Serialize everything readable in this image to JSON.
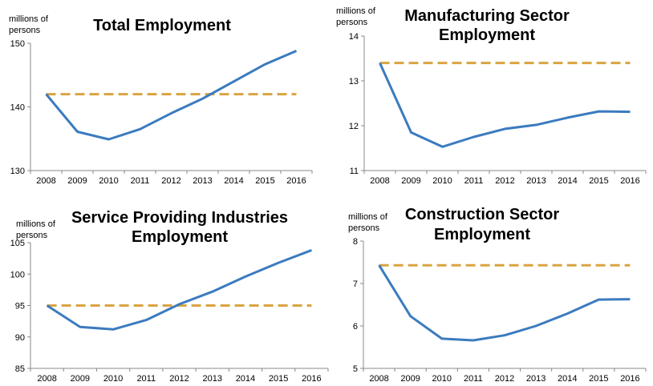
{
  "chart_data": [
    {
      "type": "line",
      "title": [
        "Total Employment"
      ],
      "unit_label": [
        "millions of",
        "persons"
      ],
      "x": [
        "2008",
        "2009",
        "2010",
        "2011",
        "2012",
        "2013",
        "2014",
        "2015",
        "2016"
      ],
      "ylim": [
        130,
        150
      ],
      "yticks": [
        130,
        140,
        150
      ],
      "series": [
        {
          "values": [
            142.0,
            136.1,
            134.9,
            136.5,
            139.0,
            141.3,
            144.0,
            146.7,
            148.8
          ],
          "color": "#3b7bbf",
          "style": "solid"
        },
        {
          "values": [
            142.0,
            142.0,
            142.0,
            142.0,
            142.0,
            142.0,
            142.0,
            142.0,
            142.0
          ],
          "color": "#d9a441",
          "style": "dashed"
        }
      ],
      "grid": false
    },
    {
      "type": "line",
      "title": [
        "Manufacturing Sector",
        "Employment"
      ],
      "unit_label": [
        "millions of",
        "persons"
      ],
      "x": [
        "2008",
        "2009",
        "2010",
        "2011",
        "2012",
        "2013",
        "2014",
        "2015",
        "2016"
      ],
      "ylim": [
        11,
        14
      ],
      "yticks": [
        11,
        12,
        13,
        14
      ],
      "series": [
        {
          "values": [
            13.4,
            11.85,
            11.53,
            11.75,
            11.93,
            12.02,
            12.18,
            12.32,
            12.31
          ],
          "color": "#3b7bbf",
          "style": "solid"
        },
        {
          "values": [
            13.4,
            13.4,
            13.4,
            13.4,
            13.4,
            13.4,
            13.4,
            13.4,
            13.4
          ],
          "color": "#d9a441",
          "style": "dashed"
        }
      ],
      "grid": false
    },
    {
      "type": "line",
      "title": [
        "Service Providing Industries",
        "Employment"
      ],
      "unit_label": [
        "millions of",
        "persons"
      ],
      "x": [
        "2008",
        "2009",
        "2010",
        "2011",
        "2012",
        "2013",
        "2014",
        "2015",
        "2016"
      ],
      "ylim": [
        85,
        105
      ],
      "yticks": [
        85,
        90,
        95,
        100,
        105
      ],
      "series": [
        {
          "values": [
            95.0,
            91.6,
            91.2,
            92.7,
            95.2,
            97.2,
            99.6,
            101.8,
            103.8
          ],
          "color": "#3b7bbf",
          "style": "solid"
        },
        {
          "values": [
            95.0,
            95.0,
            95.0,
            95.0,
            95.0,
            95.0,
            95.0,
            95.0,
            95.0
          ],
          "color": "#d9a441",
          "style": "dashed"
        }
      ],
      "grid": false
    },
    {
      "type": "line",
      "title": [
        "Construction Sector",
        "Employment"
      ],
      "unit_label": [
        "millions of",
        "persons"
      ],
      "x": [
        "2008",
        "2009",
        "2010",
        "2011",
        "2012",
        "2013",
        "2014",
        "2015",
        "2016"
      ],
      "ylim": [
        5,
        8
      ],
      "yticks": [
        5,
        6,
        7,
        8
      ],
      "series": [
        {
          "values": [
            7.43,
            6.23,
            5.7,
            5.66,
            5.78,
            6.0,
            6.29,
            6.62,
            6.63
          ],
          "color": "#3b7bbf",
          "style": "solid"
        },
        {
          "values": [
            7.43,
            7.43,
            7.43,
            7.43,
            7.43,
            7.43,
            7.43,
            7.43,
            7.43
          ],
          "color": "#d9a441",
          "style": "dashed"
        }
      ],
      "grid": false
    }
  ]
}
